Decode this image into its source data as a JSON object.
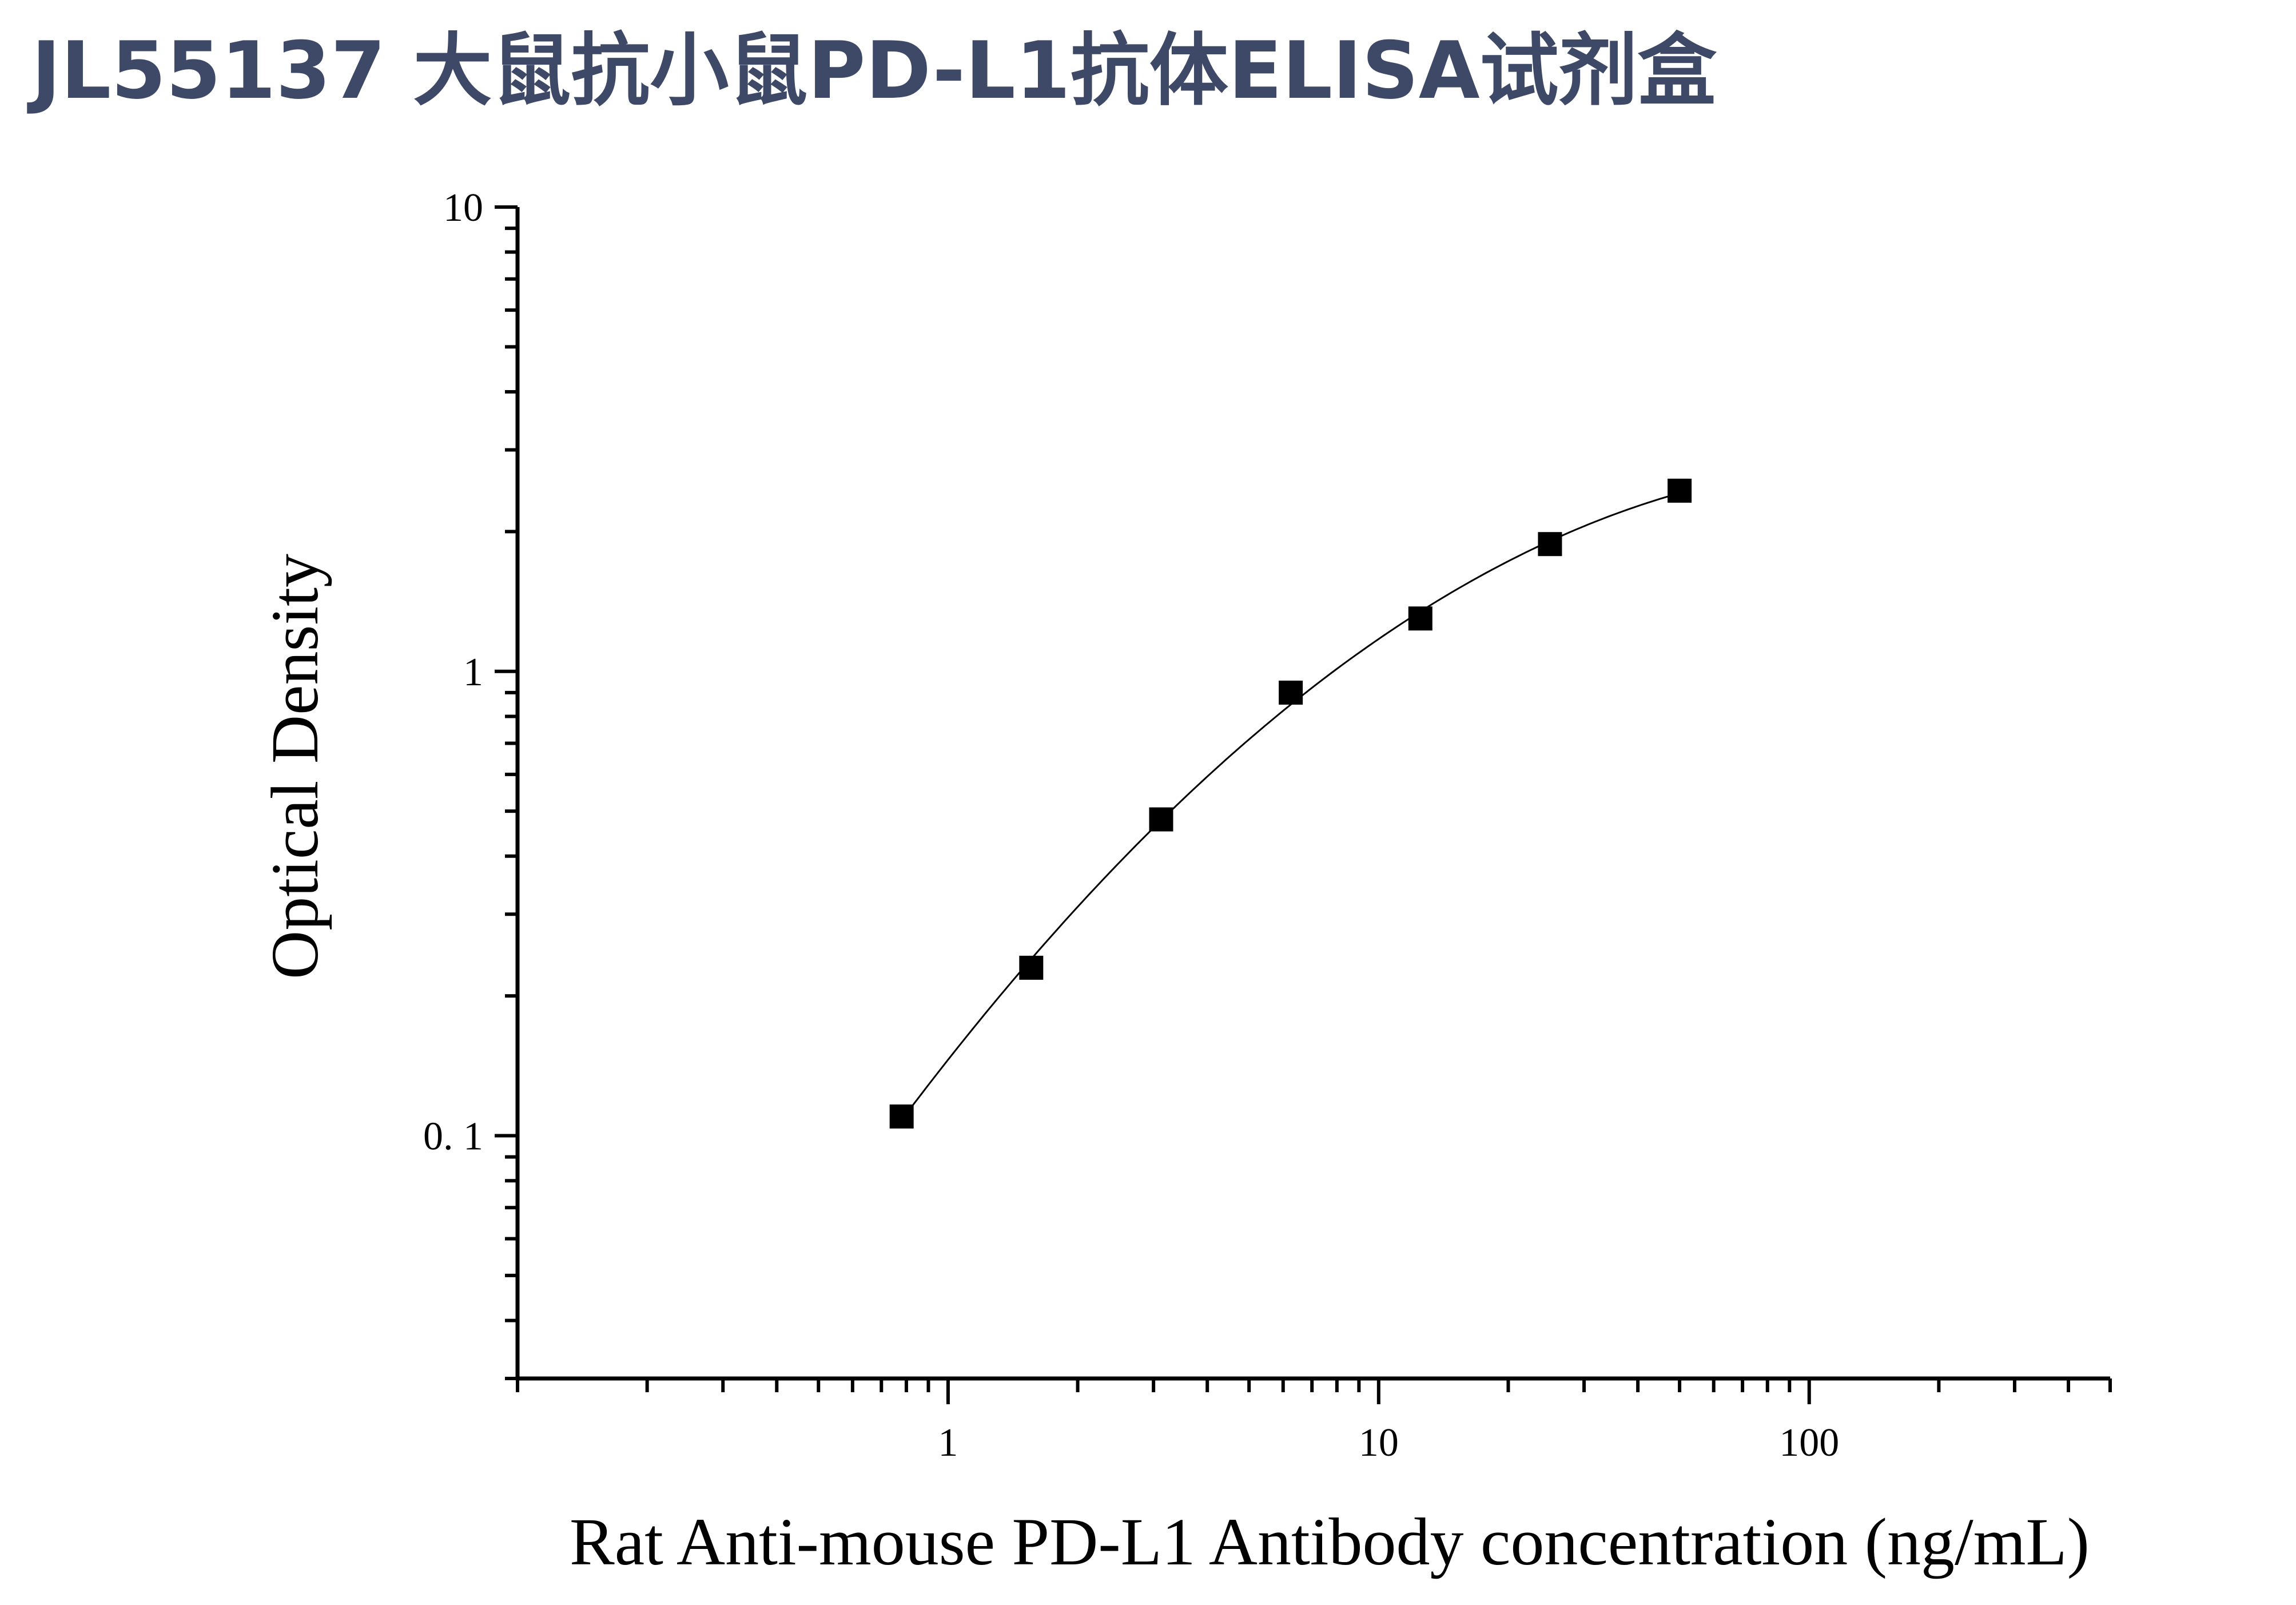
{
  "page": {
    "title": "JL55137 大鼠抗小鼠PD-L1抗体ELISA试剂盒"
  },
  "colors": {
    "title": "#3d4966",
    "axis": "#000000",
    "marker": "#000000",
    "curve": "#000000"
  },
  "chart_data": {
    "type": "scatter",
    "xlabel": "Rat Anti-mouse PD-L1 Antibody concentration (ng/mL)",
    "ylabel": "Optical Density",
    "x_scale": "log",
    "y_scale": "log",
    "xlim": [
      0.1,
      500
    ],
    "ylim": [
      0.03,
      10
    ],
    "x_ticks": [
      {
        "value": 1,
        "label": "1"
      },
      {
        "value": 10,
        "label": "10"
      },
      {
        "value": 100,
        "label": "100"
      }
    ],
    "y_ticks": [
      {
        "value": 10,
        "label": "10"
      },
      {
        "value": 1,
        "label": "1"
      },
      {
        "value": 0.1,
        "label": "0. 1"
      }
    ],
    "grid": false,
    "legend": "none",
    "series": [
      {
        "marker": "square",
        "x": [
          0.78,
          1.56,
          3.125,
          6.25,
          12.5,
          25,
          50
        ],
        "y": [
          0.11,
          0.23,
          0.48,
          0.9,
          1.3,
          1.88,
          2.45
        ]
      }
    ],
    "fit_curve": {
      "style": "thin solid line",
      "x_range": [
        0.78,
        50
      ]
    }
  }
}
